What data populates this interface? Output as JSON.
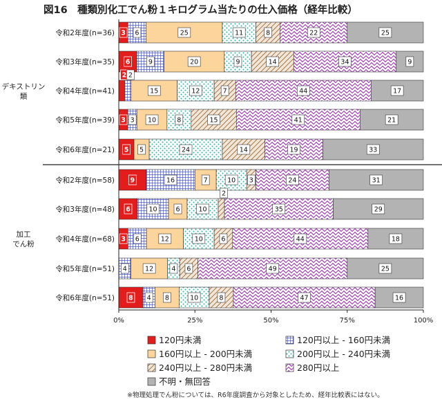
{
  "title": "図16　種類別化工でん粉１キログラム当たりの仕入価格（経年比較）",
  "footnote": "※物理処理でん粉については、R6年度調査から対象としたため、経年比較表にはない。",
  "chart_data": {
    "type": "bar",
    "orientation": "horizontal",
    "stacked": "percent",
    "xlim": [
      0,
      100
    ],
    "x_ticks": [
      "0%",
      "25%",
      "50%",
      "75%",
      "100%"
    ],
    "grid": false,
    "legend_position": "bottom",
    "series": [
      {
        "name": "120円未満",
        "color": "#e31c1c",
        "pattern": "solid"
      },
      {
        "name": "120円以上 - 160円未満",
        "color": "#4a55c8",
        "pattern": "grid"
      },
      {
        "name": "160円以上 - 200円未満",
        "color": "#fbd59c",
        "pattern": "solid"
      },
      {
        "name": "200円以上 - 240円未満",
        "color": "#2bb3a6",
        "pattern": "dots"
      },
      {
        "name": "240円以上 - 280円未満",
        "color": "#b08457",
        "pattern": "hatch"
      },
      {
        "name": "280円以上",
        "color": "#a94fc2",
        "pattern": "wave"
      },
      {
        "name": "不明・無回答",
        "color": "#b3b3b3",
        "pattern": "solid"
      }
    ],
    "groups": [
      {
        "label": "デキストリン\n類",
        "rows": [
          {
            "label": "令和2年度(n=36)",
            "values": [
              3,
              6,
              25,
              11,
              8,
              22,
              25
            ]
          },
          {
            "label": "令和3年度(n=35)",
            "values": [
              6,
              9,
              20,
              9,
              14,
              34,
              9
            ]
          },
          {
            "label": "令和4年度(n=41)",
            "values": [
              2,
              2,
              15,
              12,
              7,
              44,
              17
            ]
          },
          {
            "label": "令和5年度(n=39)",
            "values": [
              3,
              3,
              10,
              8,
              15,
              41,
              21
            ]
          },
          {
            "label": "令和6年度(n=21)",
            "values": [
              5,
              0,
              5,
              24,
              14,
              19,
              33
            ]
          }
        ]
      },
      {
        "label": "加工\nでん粉",
        "rows": [
          {
            "label": "令和2年度(n=58)",
            "values": [
              9,
              16,
              7,
              10,
              3,
              24,
              31
            ]
          },
          {
            "label": "令和3年度(n=48)",
            "values": [
              6,
              10,
              6,
              10,
              2,
              35,
              29
            ]
          },
          {
            "label": "令和4年度(n=68)",
            "values": [
              3,
              6,
              12,
              10,
              6,
              44,
              18
            ]
          },
          {
            "label": "令和5年度(n=51)",
            "values": [
              0,
              4,
              12,
              4,
              6,
              49,
              25
            ]
          },
          {
            "label": "令和6年度(n=51)",
            "values": [
              8,
              4,
              8,
              10,
              8,
              47,
              16
            ]
          }
        ]
      }
    ]
  }
}
